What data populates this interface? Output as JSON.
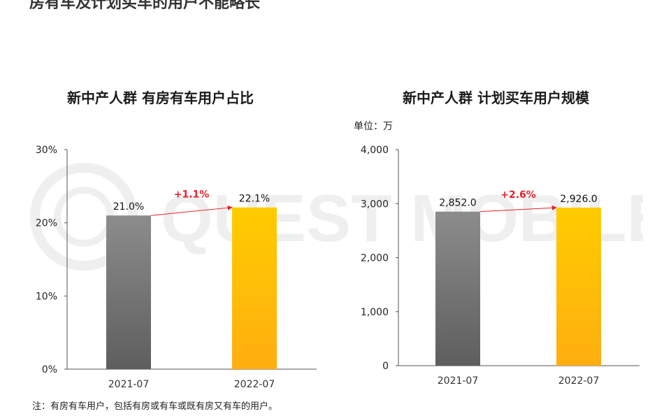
{
  "page": {
    "heading_partial": "房有车及计划买车的用户不能略长",
    "watermark": "QUEST MOBILE",
    "footnote": "注：有房有车用户，包括有房或有车或既有房又有车的用户。"
  },
  "colors": {
    "bar_2021": "#7a7a7a",
    "bar_2022": "#ffc000",
    "growth": "#e8202a",
    "axis": "#555555"
  },
  "chart_data": [
    {
      "type": "bar",
      "title": "新中产人群 有房有车用户占比",
      "unit": "",
      "categories": [
        "2021-07",
        "2022-07"
      ],
      "values": [
        21.0,
        22.1
      ],
      "value_labels": [
        "21.0%",
        "22.1%"
      ],
      "ylim": [
        0,
        30
      ],
      "yticks": [
        0,
        10,
        20,
        30
      ],
      "ytick_labels": [
        "0%",
        "10%",
        "20%",
        "30%"
      ],
      "growth_label": "+1.1%",
      "xlabel": "",
      "ylabel": "",
      "grid": false
    },
    {
      "type": "bar",
      "title": "新中产人群 计划买车用户规模",
      "unit": "单位：万",
      "categories": [
        "2021-07",
        "2022-07"
      ],
      "values": [
        2852.0,
        2926.0
      ],
      "value_labels": [
        "2,852.0",
        "2,926.0"
      ],
      "ylim": [
        0,
        4000
      ],
      "yticks": [
        0,
        1000,
        2000,
        3000,
        4000
      ],
      "ytick_labels": [
        "0",
        "1,000",
        "2,000",
        "3,000",
        "4,000"
      ],
      "growth_label": "+2.6%",
      "xlabel": "",
      "ylabel": "",
      "grid": false
    }
  ]
}
